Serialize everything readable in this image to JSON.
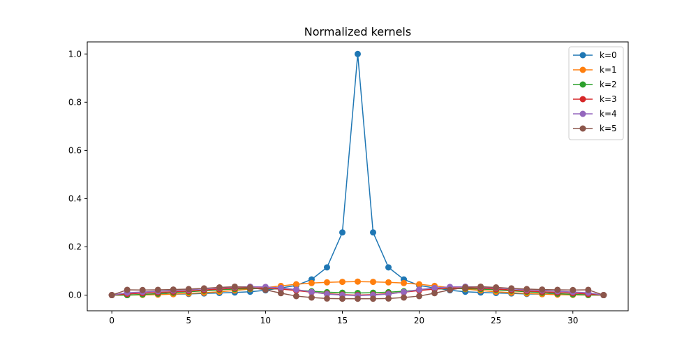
{
  "chart_data": {
    "type": "line",
    "title": "Normalized kernels",
    "xlabel": "",
    "ylabel": "",
    "xlim": [
      -1.6,
      33.6
    ],
    "ylim": [
      -0.065,
      1.05
    ],
    "xticks": [
      0,
      5,
      10,
      15,
      20,
      25,
      30
    ],
    "yticks": [
      0.0,
      0.2,
      0.4,
      0.6,
      0.8,
      1.0
    ],
    "xtick_labels": [
      "0",
      "5",
      "10",
      "15",
      "20",
      "25",
      "30"
    ],
    "ytick_labels": [
      "0.0",
      "0.2",
      "0.4",
      "0.6",
      "0.8",
      "1.0"
    ],
    "grid": false,
    "legend_position": "top-right",
    "x": [
      0,
      1,
      2,
      3,
      4,
      5,
      6,
      7,
      8,
      9,
      10,
      11,
      12,
      13,
      14,
      15,
      16,
      17,
      18,
      19,
      20,
      21,
      22,
      23,
      24,
      25,
      26,
      27,
      28,
      29,
      30,
      31,
      32
    ],
    "series": [
      {
        "name": "k=0",
        "color": "#1f77b4",
        "values": [
          0,
          0,
          0.002,
          0.003,
          0.004,
          0.005,
          0.007,
          0.009,
          0.011,
          0.014,
          0.02,
          0.03,
          0.04,
          0.065,
          0.115,
          0.26,
          1.0,
          0.26,
          0.115,
          0.065,
          0.04,
          0.03,
          0.02,
          0.014,
          0.011,
          0.009,
          0.007,
          0.005,
          0.004,
          0.003,
          0.002,
          0.001,
          0
        ]
      },
      {
        "name": "k=1",
        "color": "#ff7f0e",
        "values": [
          0,
          0,
          0.001,
          0.002,
          0.004,
          0.007,
          0.01,
          0.014,
          0.019,
          0.025,
          0.031,
          0.038,
          0.045,
          0.05,
          0.053,
          0.055,
          0.056,
          0.055,
          0.053,
          0.05,
          0.045,
          0.038,
          0.031,
          0.025,
          0.019,
          0.014,
          0.01,
          0.007,
          0.004,
          0.002,
          0.001,
          0,
          0
        ]
      },
      {
        "name": "k=2",
        "color": "#2ca02c",
        "values": [
          0,
          0,
          0.003,
          0.006,
          0.01,
          0.014,
          0.018,
          0.022,
          0.025,
          0.027,
          0.027,
          0.025,
          0.021,
          0.016,
          0.012,
          0.01,
          0.009,
          0.01,
          0.012,
          0.016,
          0.021,
          0.025,
          0.027,
          0.027,
          0.025,
          0.022,
          0.018,
          0.014,
          0.01,
          0.006,
          0.003,
          0.001,
          0
        ]
      },
      {
        "name": "k=3",
        "color": "#d62728",
        "values": [
          0,
          0.005,
          0.008,
          0.011,
          0.014,
          0.017,
          0.021,
          0.025,
          0.029,
          0.03,
          0.029,
          0.025,
          0.019,
          0.012,
          0.006,
          0.002,
          0.0,
          0.002,
          0.006,
          0.012,
          0.019,
          0.025,
          0.029,
          0.03,
          0.029,
          0.025,
          0.021,
          0.017,
          0.014,
          0.011,
          0.008,
          0.005,
          0
        ]
      },
      {
        "name": "k=4",
        "color": "#9467bd",
        "values": [
          0,
          0.01,
          0.013,
          0.016,
          0.019,
          0.022,
          0.026,
          0.03,
          0.033,
          0.035,
          0.034,
          0.03,
          0.023,
          0.013,
          0.004,
          0.0,
          -0.002,
          0.0,
          0.004,
          0.013,
          0.023,
          0.03,
          0.034,
          0.035,
          0.033,
          0.03,
          0.026,
          0.022,
          0.019,
          0.016,
          0.013,
          0.01,
          0
        ]
      },
      {
        "name": "k=5",
        "color": "#8c564b",
        "values": [
          0,
          0.022,
          0.021,
          0.022,
          0.023,
          0.025,
          0.028,
          0.032,
          0.035,
          0.032,
          0.022,
          0.008,
          -0.004,
          -0.01,
          -0.014,
          -0.015,
          -0.015,
          -0.015,
          -0.014,
          -0.01,
          -0.004,
          0.008,
          0.022,
          0.032,
          0.035,
          0.032,
          0.028,
          0.025,
          0.023,
          0.022,
          0.021,
          0.022,
          0
        ]
      }
    ]
  }
}
